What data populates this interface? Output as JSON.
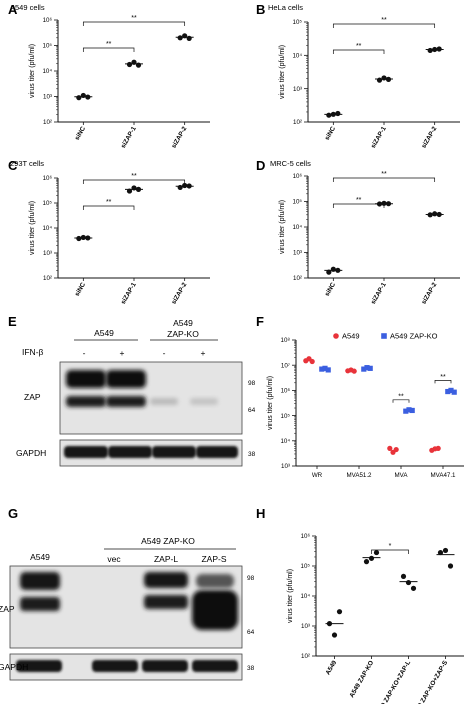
{
  "panels": {
    "A": "A",
    "B": "B",
    "C": "C",
    "D": "D",
    "E": "E",
    "F": "F",
    "G": "G",
    "H": "H"
  },
  "chart_data": [
    {
      "id": "A",
      "type": "scatter",
      "title": "A549 cells",
      "ylabel": "virus titer (pfu/ml)",
      "yscale": "log",
      "ylim": [
        100,
        1000000
      ],
      "yticks": [
        100,
        1000,
        10000,
        100000,
        1000000
      ],
      "ytick_labels": [
        "10²",
        "10³",
        "10⁴",
        "10⁵",
        "10⁶"
      ],
      "categories": [
        "siNC",
        "siZAP-1",
        "siZAP-2"
      ],
      "series": [
        {
          "values": [
            [
              900,
              1100,
              950
            ],
            [
              18000,
              22000,
              17000
            ],
            [
              200000,
              240000,
              190000
            ]
          ]
        }
      ],
      "means": [
        980,
        19000,
        210000
      ],
      "significance": [
        {
          "from": 0,
          "to": 1,
          "label": "**"
        },
        {
          "from": 0,
          "to": 2,
          "label": "**"
        }
      ]
    },
    {
      "id": "B",
      "type": "scatter",
      "title": "HeLa cells",
      "ylabel": "virus titer (pfu/ml)",
      "yscale": "log",
      "ylim": [
        100,
        100000
      ],
      "yticks": [
        100,
        1000,
        10000,
        100000
      ],
      "ytick_labels": [
        "10²",
        "10³",
        "10⁴",
        "10⁵"
      ],
      "categories": [
        "siNC",
        "siZAP-1",
        "siZAP-2"
      ],
      "series": [
        {
          "values": [
            [
              160,
              170,
              180
            ],
            [
              1800,
              2100,
              1900
            ],
            [
              14000,
              15000,
              15500
            ]
          ]
        }
      ],
      "means": [
        170,
        1950,
        15000
      ],
      "significance": [
        {
          "from": 0,
          "to": 1,
          "label": "**"
        },
        {
          "from": 0,
          "to": 2,
          "label": "**"
        }
      ]
    },
    {
      "id": "C",
      "type": "scatter",
      "title": "293T cells",
      "ylabel": "virus titer (pfu/ml)",
      "yscale": "log",
      "ylim": [
        100,
        1000000
      ],
      "yticks": [
        100,
        1000,
        10000,
        100000,
        1000000
      ],
      "ytick_labels": [
        "10²",
        "10³",
        "10⁴",
        "10⁵",
        "10⁶"
      ],
      "categories": [
        "siNC",
        "siZAP-1",
        "siZAP-2"
      ],
      "series": [
        {
          "values": [
            [
              3800,
              4200,
              4000
            ],
            [
              300000,
              400000,
              350000
            ],
            [
              420000,
              500000,
              480000
            ]
          ]
        }
      ],
      "means": [
        4000,
        350000,
        470000
      ],
      "significance": [
        {
          "from": 0,
          "to": 1,
          "label": "**"
        },
        {
          "from": 0,
          "to": 2,
          "label": "**"
        }
      ]
    },
    {
      "id": "D",
      "type": "scatter",
      "title": "MRC-5 cells",
      "ylabel": "virus titer (pfu/ml)",
      "yscale": "log",
      "ylim": [
        100,
        1000000
      ],
      "yticks": [
        100,
        1000,
        10000,
        100000,
        1000000
      ],
      "ytick_labels": [
        "10²",
        "10³",
        "10⁴",
        "10⁵",
        "10⁶"
      ],
      "categories": [
        "siNC",
        "siZAP-1",
        "siZAP-2"
      ],
      "series": [
        {
          "values": [
            [
              170,
              220,
              200
            ],
            [
              80000,
              85000,
              82000
            ],
            [
              30000,
              33000,
              31000
            ]
          ]
        }
      ],
      "means": [
        200,
        82000,
        31000
      ],
      "significance": [
        {
          "from": 0,
          "to": 1,
          "label": "**"
        },
        {
          "from": 0,
          "to": 2,
          "label": "**"
        }
      ]
    },
    {
      "id": "F",
      "type": "scatter",
      "ylabel": "virus titer (pfu/ml)",
      "yscale": "log",
      "ylim": [
        1000,
        100000000
      ],
      "yticks": [
        1000,
        10000,
        100000,
        1000000,
        10000000,
        100000000
      ],
      "ytick_labels": [
        "10³",
        "10⁴",
        "10⁵",
        "10⁶",
        "10⁷",
        "10⁸"
      ],
      "categories": [
        "WR",
        "MVA51.2",
        "MVA",
        "MVA47.1"
      ],
      "legend_position": "top",
      "series": [
        {
          "name": "A549",
          "color": "#e8333a",
          "values": [
            [
              15000000,
              18000000,
              14000000
            ],
            [
              6000000,
              6500000,
              5800000
            ],
            [
              5000,
              3500,
              4500
            ],
            [
              4200,
              4800,
              5000
            ]
          ]
        },
        {
          "name": "A549 ZAP-KO",
          "color": "#3b5fe0",
          "values": [
            [
              7000000,
              7500000,
              6500000
            ],
            [
              7000000,
              8000000,
              7500000
            ],
            [
              150000,
              170000,
              160000
            ],
            [
              900000,
              1000000,
              850000
            ]
          ]
        }
      ],
      "significance": [
        {
          "category": 2,
          "label": "**"
        },
        {
          "category": 3,
          "label": "**"
        }
      ]
    },
    {
      "id": "H",
      "type": "scatter",
      "ylabel": "virus titer (pfu/ml)",
      "yscale": "log",
      "ylim": [
        100,
        1000000
      ],
      "yticks": [
        100,
        1000,
        10000,
        100000,
        1000000
      ],
      "ytick_labels": [
        "10²",
        "10³",
        "10⁴",
        "10⁵",
        "10⁶"
      ],
      "categories": [
        "A549",
        "A549 ZAP-KO",
        "A549 ZAP-KO+ZAP-L",
        "A549 ZAP-KO+ZAP-S"
      ],
      "series": [
        {
          "values": [
            [
              1200,
              3000,
              500
            ],
            [
              140000,
              280000,
              180000
            ],
            [
              45000,
              18000,
              28000
            ],
            [
              280000,
              100000,
              330000
            ]
          ]
        }
      ],
      "means": [
        1200,
        190000,
        30000,
        240000
      ],
      "significance": [
        {
          "from": 1,
          "to": 2,
          "label": "*"
        }
      ]
    }
  ],
  "blotE": {
    "group1": "A549",
    "group2": "A549\nZAP-KO",
    "group2_line1": "A549",
    "group2_line2": "ZAP-KO",
    "treatment": "IFN-β",
    "lane_signs": [
      "-",
      "+",
      "-",
      "+"
    ],
    "rows": [
      "ZAP",
      "GAPDH"
    ],
    "mw": [
      "98",
      "64",
      "38"
    ]
  },
  "blotG": {
    "left_label": "A549",
    "group_label": "A549 ZAP-KO",
    "lanes": [
      "vec",
      "ZAP-L",
      "ZAP-S"
    ],
    "rows": [
      "ZAP",
      "GAPDH"
    ],
    "mw": [
      "98",
      "64",
      "38"
    ]
  }
}
